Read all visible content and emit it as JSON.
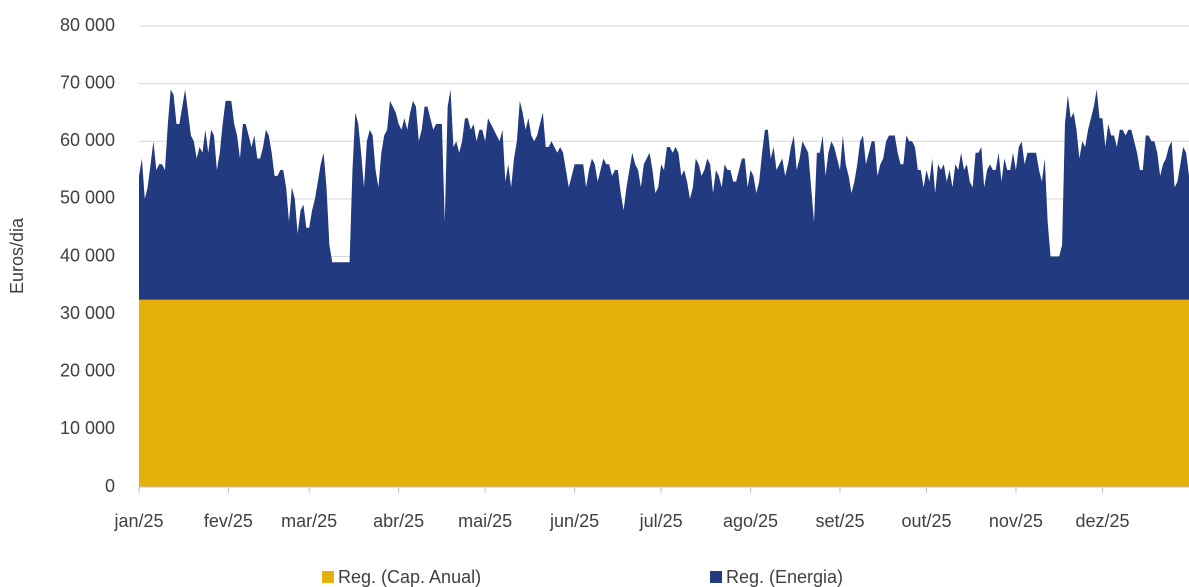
{
  "chart_data": {
    "type": "area",
    "stacked": true,
    "y_label": "Euros/dia",
    "ylim": [
      0,
      80000
    ],
    "yticks": [
      0,
      {
        "value": 10000,
        "label": "10 000"
      },
      {
        "value": 20000,
        "label": "20 000"
      },
      {
        "value": 30000,
        "label": "30 000"
      },
      {
        "value": 40000,
        "label": "40 000"
      },
      {
        "value": 50000,
        "label": "50 000"
      },
      {
        "value": 60000,
        "label": "60 000"
      },
      {
        "value": 70000,
        "label": "70 000"
      },
      {
        "value": 80000,
        "label": "80 000"
      }
    ],
    "grid": true,
    "legend": "bottom",
    "categories": [
      "jan/25",
      null,
      null,
      null,
      null,
      null,
      null,
      null,
      null,
      null,
      null,
      null,
      null,
      null,
      null,
      null,
      null,
      null,
      null,
      null,
      null,
      null,
      null,
      null,
      null,
      null,
      null,
      null,
      null,
      null,
      null,
      "fev/25",
      null,
      null,
      null,
      null,
      null,
      null,
      null,
      null,
      null,
      null,
      null,
      null,
      null,
      null,
      null,
      null,
      null,
      null,
      null,
      null,
      null,
      null,
      null,
      null,
      null,
      null,
      null,
      "mar/25",
      null,
      null,
      null,
      null,
      null,
      null,
      null,
      null,
      null,
      null,
      null,
      null,
      null,
      null,
      null,
      null,
      null,
      null,
      null,
      null,
      null,
      null,
      null,
      null,
      null,
      null,
      null,
      null,
      null,
      null,
      "abr/25",
      null,
      null,
      null,
      null,
      null,
      null,
      null,
      null,
      null,
      null,
      null,
      null,
      null,
      null,
      null,
      null,
      null,
      null,
      null,
      null,
      null,
      null,
      null,
      null,
      null,
      null,
      null,
      null,
      null,
      "mai/25",
      null,
      null,
      null,
      null,
      null,
      null,
      null,
      null,
      null,
      null,
      null,
      null,
      null,
      null,
      null,
      null,
      null,
      null,
      null,
      null,
      null,
      null,
      null,
      null,
      null,
      null,
      null,
      null,
      null,
      null,
      "jun/25",
      null,
      null,
      null,
      null,
      null,
      null,
      null,
      null,
      null,
      null,
      null,
      null,
      null,
      null,
      null,
      null,
      null,
      null,
      null,
      null,
      null,
      null,
      null,
      null,
      null,
      null,
      null,
      null,
      null,
      "jul/25",
      null,
      null,
      null,
      null,
      null,
      null,
      null,
      null,
      null,
      null,
      null,
      null,
      null,
      null,
      null,
      null,
      null,
      null,
      null,
      null,
      null,
      null,
      null,
      null,
      null,
      null,
      null,
      null,
      null,
      null,
      "ago/25",
      null,
      null,
      null,
      null,
      null,
      null,
      null,
      null,
      null,
      null,
      null,
      null,
      null,
      null,
      null,
      null,
      null,
      null,
      null,
      null,
      null,
      null,
      null,
      null,
      null,
      null,
      null,
      null,
      null,
      null,
      "set/25",
      null,
      null,
      null,
      null,
      null,
      null,
      null,
      null,
      null,
      null,
      null,
      null,
      null,
      null,
      null,
      null,
      null,
      null,
      null,
      null,
      null,
      null,
      null,
      null,
      null,
      null,
      null,
      null,
      null,
      "out/25",
      null,
      null,
      null,
      null,
      null,
      null,
      null,
      null,
      null,
      null,
      null,
      null,
      null,
      null,
      null,
      null,
      null,
      null,
      null,
      null,
      null,
      null,
      null,
      null,
      null,
      null,
      null,
      null,
      null,
      null,
      "nov/25",
      null,
      null,
      null,
      null,
      null,
      null,
      null,
      null,
      null,
      null,
      null,
      null,
      null,
      null,
      null,
      null,
      null,
      null,
      null,
      null,
      null,
      null,
      null,
      null,
      null,
      null,
      null,
      null,
      null,
      "dez/25",
      null,
      null,
      null,
      null,
      null,
      null,
      null,
      null,
      null,
      null,
      null,
      null,
      null,
      null,
      null,
      null,
      null,
      null,
      null,
      null,
      null,
      null,
      null,
      null,
      null,
      null,
      null,
      null,
      null,
      null
    ],
    "series": [
      {
        "name": "Reg. (Cap. Anual)",
        "color": "#e6b00c",
        "values": [
          32500,
          32500,
          32500,
          32500,
          32500,
          32500,
          32500,
          32500,
          32500,
          32500,
          32500,
          32500,
          32500,
          32500,
          32500,
          32500,
          32500,
          32500,
          32500,
          32500,
          32500,
          32500,
          32500,
          32500,
          32500,
          32500,
          32500,
          32500,
          32500,
          32500,
          32500,
          32500,
          32500,
          32500,
          32500,
          32500,
          32500,
          32500,
          32500,
          32500,
          32500,
          32500,
          32500,
          32500,
          32500,
          32500,
          32500,
          32500,
          32500,
          32500,
          32500,
          32500,
          32500,
          32500,
          32500,
          32500,
          32500,
          32500,
          32500,
          32500,
          32500,
          32500,
          32500,
          32500,
          32500,
          32500,
          32500,
          32500,
          32500,
          32500,
          32500,
          32500,
          32500,
          32500,
          32500,
          32500,
          32500,
          32500,
          32500,
          32500,
          32500,
          32500,
          32500,
          32500,
          32500,
          32500,
          32500,
          32500,
          32500,
          32500,
          32500,
          32500,
          32500,
          32500,
          32500,
          32500,
          32500,
          32500,
          32500,
          32500,
          32500,
          32500,
          32500,
          32500,
          32500,
          32500,
          32500,
          32500,
          32500,
          32500,
          32500,
          32500,
          32500,
          32500,
          32500,
          32500,
          32500,
          32500,
          32500,
          32500,
          32500,
          32500,
          32500,
          32500,
          32500,
          32500,
          32500,
          32500,
          32500,
          32500,
          32500,
          32500,
          32500,
          32500,
          32500,
          32500,
          32500,
          32500,
          32500,
          32500,
          32500,
          32500,
          32500,
          32500,
          32500,
          32500,
          32500,
          32500,
          32500,
          32500,
          32500,
          32500,
          32500,
          32500,
          32500,
          32500,
          32500,
          32500,
          32500,
          32500,
          32500,
          32500,
          32500,
          32500,
          32500,
          32500,
          32500,
          32500,
          32500,
          32500,
          32500,
          32500,
          32500,
          32500,
          32500,
          32500,
          32500,
          32500,
          32500,
          32500,
          32500,
          32500,
          32500,
          32500,
          32500,
          32500,
          32500,
          32500,
          32500,
          32500,
          32500,
          32500,
          32500,
          32500,
          32500,
          32500,
          32500,
          32500,
          32500,
          32500,
          32500,
          32500,
          32500,
          32500,
          32500,
          32500,
          32500,
          32500,
          32500,
          32500,
          32500,
          32500,
          32500,
          32500,
          32500,
          32500,
          32500,
          32500,
          32500,
          32500,
          32500,
          32500,
          32500,
          32500,
          32500,
          32500,
          32500,
          32500,
          32500,
          32500,
          32500,
          32500,
          32500,
          32500,
          32500,
          32500,
          32500,
          32500,
          32500,
          32500,
          32500,
          32500,
          32500,
          32500,
          32500,
          32500,
          32500,
          32500,
          32500,
          32500,
          32500,
          32500,
          32500,
          32500,
          32500,
          32500,
          32500,
          32500,
          32500,
          32500,
          32500,
          32500,
          32500,
          32500,
          32500,
          32500,
          32500,
          32500,
          32500,
          32500,
          32500,
          32500,
          32500,
          32500,
          32500,
          32500,
          32500,
          32500,
          32500,
          32500,
          32500,
          32500,
          32500,
          32500,
          32500,
          32500,
          32500,
          32500,
          32500,
          32500,
          32500,
          32500,
          32500,
          32500,
          32500,
          32500,
          32500,
          32500,
          32500,
          32500,
          32500,
          32500,
          32500,
          32500,
          32500,
          32500,
          32500,
          32500,
          32500,
          32500,
          32500,
          32500,
          32500,
          32500,
          32500,
          32500,
          32500,
          32500,
          32500,
          32500,
          32500,
          32500,
          32500,
          32500,
          32500,
          32500,
          32500,
          32500,
          32500,
          32500,
          32500,
          32500,
          32500,
          32500,
          32500,
          32500,
          32500,
          32500,
          32500,
          32500,
          32500,
          32500,
          32500,
          32500,
          32500,
          32500,
          32500,
          32500,
          32500,
          32500,
          32500,
          32500,
          32500,
          32500,
          32500,
          32500,
          32500,
          32500,
          32500,
          32500,
          32500,
          32500,
          32500,
          32500,
          32500
        ]
      },
      {
        "name": "Reg. (Energia)",
        "color": "#223a80",
        "values": [
          21500,
          24500,
          17500,
          19500,
          23500,
          27500,
          22500,
          23500,
          23500,
          22500,
          30500,
          36500,
          35500,
          30500,
          30500,
          33500,
          36500,
          32500,
          28500,
          27500,
          24500,
          26500,
          25500,
          29500,
          25500,
          29500,
          28500,
          22500,
          25500,
          30500,
          34500,
          34500,
          34500,
          30500,
          28500,
          24500,
          30500,
          30500,
          28500,
          26500,
          28500,
          24500,
          24500,
          26500,
          29500,
          28500,
          25500,
          21500,
          21500,
          22500,
          22500,
          19500,
          13500,
          19500,
          17500,
          11500,
          15500,
          16500,
          12500,
          12500,
          15500,
          17500,
          20500,
          23500,
          25500,
          19500,
          9500,
          6500,
          6500,
          6500,
          6500,
          6500,
          6500,
          6500,
          22500,
          32500,
          30500,
          25500,
          19500,
          27500,
          29500,
          28500,
          22500,
          19500,
          25500,
          28500,
          29500,
          34500,
          33500,
          32500,
          30500,
          29500,
          31500,
          29500,
          32500,
          34500,
          33500,
          27500,
          29500,
          33500,
          33500,
          31500,
          29500,
          30500,
          30500,
          30500,
          13500,
          33500,
          36500,
          26500,
          27500,
          25500,
          27500,
          31500,
          31500,
          29500,
          30500,
          27500,
          29500,
          29500,
          27500,
          31500,
          30500,
          29500,
          28500,
          27500,
          29500,
          20500,
          23500,
          19500,
          24500,
          27500,
          34500,
          32500,
          29500,
          31500,
          28500,
          27500,
          28500,
          30500,
          32500,
          26500,
          26500,
          27500,
          26500,
          25500,
          26500,
          25500,
          22500,
          19500,
          21500,
          23500,
          23500,
          23500,
          23500,
          19500,
          22500,
          24500,
          23500,
          20500,
          22500,
          24500,
          23500,
          23500,
          21500,
          22500,
          22500,
          18500,
          15500,
          19500,
          22500,
          25500,
          23500,
          22500,
          19500,
          23500,
          24500,
          25500,
          22500,
          18500,
          19500,
          23500,
          22500,
          26500,
          26500,
          25500,
          26500,
          25500,
          21500,
          22500,
          20500,
          17500,
          19500,
          24500,
          23500,
          21500,
          22500,
          24500,
          23500,
          18500,
          22500,
          21500,
          19500,
          23500,
          22500,
          22500,
          20500,
          20500,
          22500,
          24500,
          24500,
          19500,
          22500,
          21500,
          18500,
          20500,
          25500,
          29500,
          29500,
          24500,
          26500,
          22500,
          23500,
          24500,
          21500,
          23500,
          26500,
          28500,
          22500,
          24500,
          27500,
          26500,
          25500,
          19500,
          13500,
          25500,
          25500,
          28500,
          21500,
          25500,
          27500,
          26500,
          24500,
          22500,
          28500,
          23500,
          21500,
          18500,
          20500,
          23500,
          27500,
          28500,
          23500,
          25500,
          27500,
          27500,
          21500,
          23500,
          24500,
          27500,
          28500,
          28500,
          28500,
          25500,
          23500,
          23500,
          28500,
          27500,
          27500,
          26500,
          22500,
          22500,
          19500,
          22500,
          20500,
          24500,
          18500,
          23500,
          22500,
          23500,
          20500,
          22500,
          19500,
          23500,
          22500,
          25500,
          22500,
          23500,
          20500,
          19500,
          25500,
          25500,
          26500,
          19500,
          22500,
          23500,
          22500,
          22500,
          25500,
          20500,
          24500,
          22500,
          22500,
          25500,
          22500,
          26500,
          27500,
          23500,
          25500,
          25500,
          25500,
          25500,
          22500,
          20500,
          24500,
          13500,
          7500,
          7500,
          7500,
          7500,
          9500,
          30500,
          35500,
          31500,
          32500,
          29500,
          24500,
          27500,
          26500,
          29500,
          31500,
          33500,
          36500,
          31500,
          31500,
          26500,
          30500,
          28500,
          28500,
          26500,
          29500,
          29500,
          28500,
          29500,
          29500,
          27500,
          25500,
          22500,
          22500,
          28500,
          28500,
          27500,
          27500,
          25500,
          21500,
          23500,
          24500,
          26500,
          27500,
          19500,
          20500,
          23500,
          26500,
          25500,
          21500
        ]
      }
    ]
  }
}
